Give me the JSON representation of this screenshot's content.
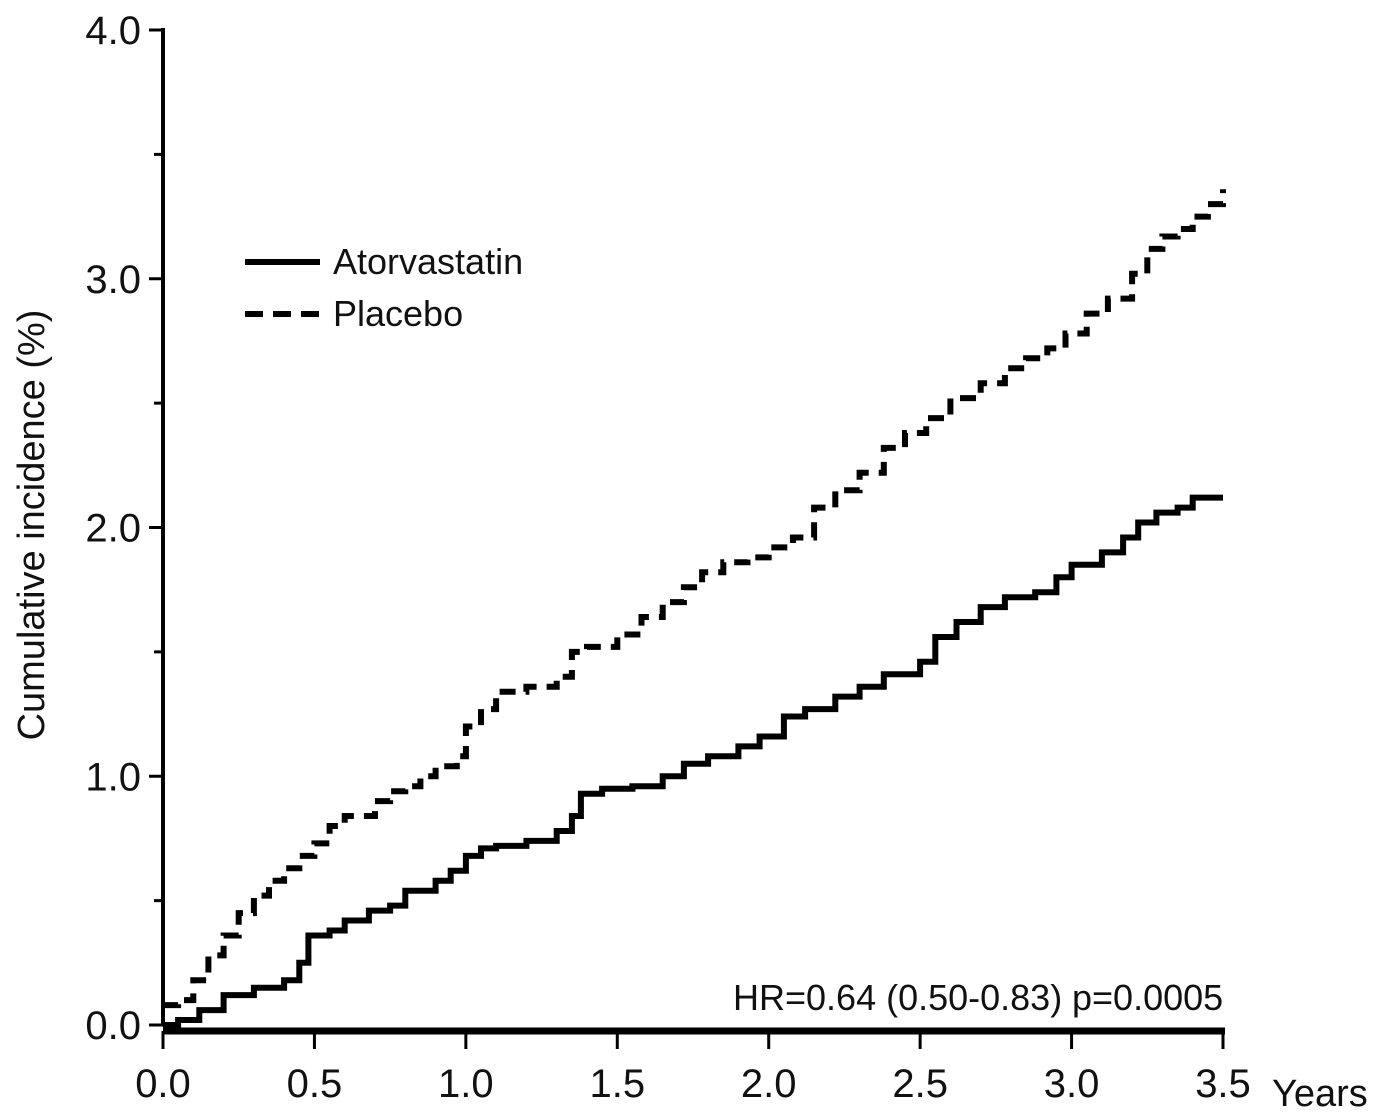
{
  "chart_data": {
    "type": "line",
    "title": "",
    "xlabel": "Years",
    "ylabel": "Cumulative incidence (%)",
    "xlim": [
      0,
      3.5
    ],
    "ylim": [
      0,
      4.0
    ],
    "x_ticks": [
      "0.0",
      "0.5",
      "1.0",
      "1.5",
      "2.0",
      "2.5",
      "3.0",
      "3.5"
    ],
    "y_ticks": [
      "0.0",
      "1.0",
      "2.0",
      "3.0",
      "4.0"
    ],
    "grid": false,
    "legend_position": "upper-left",
    "colors": {
      "line": "#000000",
      "axis": "#000000",
      "text": "#111111"
    },
    "annotations": {
      "hr": "HR=0.64 (0.50-0.83)",
      "p": "p=0.0005"
    },
    "series": [
      {
        "name": "Atorvastatin",
        "style": "solid",
        "points": [
          [
            0.0,
            0.0
          ],
          [
            0.05,
            0.02
          ],
          [
            0.12,
            0.06
          ],
          [
            0.2,
            0.12
          ],
          [
            0.3,
            0.15
          ],
          [
            0.4,
            0.18
          ],
          [
            0.45,
            0.25
          ],
          [
            0.48,
            0.36
          ],
          [
            0.55,
            0.38
          ],
          [
            0.6,
            0.42
          ],
          [
            0.68,
            0.46
          ],
          [
            0.75,
            0.48
          ],
          [
            0.8,
            0.54
          ],
          [
            0.9,
            0.58
          ],
          [
            0.95,
            0.62
          ],
          [
            1.0,
            0.68
          ],
          [
            1.05,
            0.71
          ],
          [
            1.1,
            0.72
          ],
          [
            1.2,
            0.74
          ],
          [
            1.3,
            0.78
          ],
          [
            1.35,
            0.84
          ],
          [
            1.38,
            0.93
          ],
          [
            1.45,
            0.95
          ],
          [
            1.55,
            0.96
          ],
          [
            1.65,
            1.0
          ],
          [
            1.72,
            1.05
          ],
          [
            1.8,
            1.08
          ],
          [
            1.9,
            1.12
          ],
          [
            1.97,
            1.16
          ],
          [
            2.05,
            1.24
          ],
          [
            2.12,
            1.27
          ],
          [
            2.22,
            1.32
          ],
          [
            2.3,
            1.36
          ],
          [
            2.38,
            1.41
          ],
          [
            2.5,
            1.46
          ],
          [
            2.55,
            1.56
          ],
          [
            2.62,
            1.62
          ],
          [
            2.7,
            1.68
          ],
          [
            2.78,
            1.72
          ],
          [
            2.88,
            1.74
          ],
          [
            2.95,
            1.8
          ],
          [
            3.0,
            1.85
          ],
          [
            3.1,
            1.9
          ],
          [
            3.17,
            1.96
          ],
          [
            3.22,
            2.02
          ],
          [
            3.28,
            2.06
          ],
          [
            3.35,
            2.08
          ],
          [
            3.4,
            2.12
          ],
          [
            3.5,
            2.12
          ]
        ]
      },
      {
        "name": "Placebo",
        "style": "dashed",
        "points": [
          [
            0.0,
            0.08
          ],
          [
            0.05,
            0.1
          ],
          [
            0.1,
            0.18
          ],
          [
            0.15,
            0.28
          ],
          [
            0.2,
            0.36
          ],
          [
            0.25,
            0.45
          ],
          [
            0.3,
            0.52
          ],
          [
            0.35,
            0.58
          ],
          [
            0.4,
            0.63
          ],
          [
            0.45,
            0.68
          ],
          [
            0.5,
            0.73
          ],
          [
            0.55,
            0.8
          ],
          [
            0.6,
            0.84
          ],
          [
            0.7,
            0.9
          ],
          [
            0.75,
            0.94
          ],
          [
            0.8,
            0.96
          ],
          [
            0.85,
            1.0
          ],
          [
            0.9,
            1.04
          ],
          [
            0.97,
            1.08
          ],
          [
            1.0,
            1.2
          ],
          [
            1.05,
            1.27
          ],
          [
            1.1,
            1.34
          ],
          [
            1.2,
            1.36
          ],
          [
            1.3,
            1.4
          ],
          [
            1.35,
            1.5
          ],
          [
            1.4,
            1.52
          ],
          [
            1.5,
            1.57
          ],
          [
            1.58,
            1.64
          ],
          [
            1.65,
            1.7
          ],
          [
            1.72,
            1.76
          ],
          [
            1.78,
            1.82
          ],
          [
            1.85,
            1.86
          ],
          [
            1.93,
            1.88
          ],
          [
            2.0,
            1.92
          ],
          [
            2.08,
            1.96
          ],
          [
            2.15,
            2.08
          ],
          [
            2.22,
            2.15
          ],
          [
            2.3,
            2.22
          ],
          [
            2.38,
            2.32
          ],
          [
            2.45,
            2.38
          ],
          [
            2.52,
            2.44
          ],
          [
            2.6,
            2.52
          ],
          [
            2.7,
            2.58
          ],
          [
            2.78,
            2.64
          ],
          [
            2.85,
            2.68
          ],
          [
            2.92,
            2.72
          ],
          [
            2.98,
            2.78
          ],
          [
            3.05,
            2.86
          ],
          [
            3.12,
            2.92
          ],
          [
            3.2,
            3.02
          ],
          [
            3.25,
            3.12
          ],
          [
            3.3,
            3.17
          ],
          [
            3.35,
            3.2
          ],
          [
            3.4,
            3.25
          ],
          [
            3.45,
            3.3
          ],
          [
            3.5,
            3.36
          ]
        ]
      }
    ]
  }
}
